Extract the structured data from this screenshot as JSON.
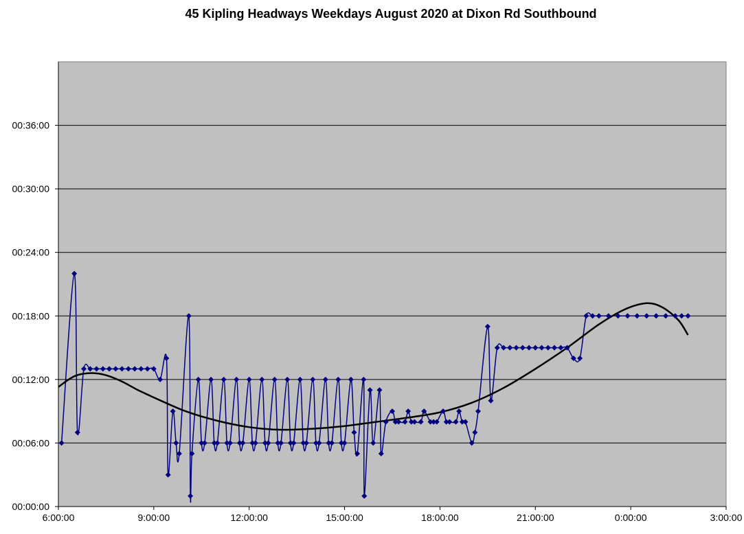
{
  "chart_data": {
    "type": "line",
    "title": "45 Kipling Headways Weekdays August 2020 at Dixon Rd Southbound",
    "xlabel": "",
    "ylabel": "",
    "x_unit": "time of day (hours, values past 24 wrap to next day)",
    "y_unit": "minutes",
    "xlim": [
      6,
      27
    ],
    "ylim": [
      0,
      42
    ],
    "x_ticks": [
      {
        "value": 6,
        "label": "6:00:00"
      },
      {
        "value": 9,
        "label": "9:00:00"
      },
      {
        "value": 12,
        "label": "12:00:00"
      },
      {
        "value": 15,
        "label": "15:00:00"
      },
      {
        "value": 18,
        "label": "18:00:00"
      },
      {
        "value": 21,
        "label": "21:00:00"
      },
      {
        "value": 24,
        "label": "0:00:00"
      },
      {
        "value": 27,
        "label": "3:00:00"
      }
    ],
    "y_ticks": [
      {
        "value": 0,
        "label": "00:00:00"
      },
      {
        "value": 6,
        "label": "00:06:00"
      },
      {
        "value": 12,
        "label": "00:12:00"
      },
      {
        "value": 18,
        "label": "00:18:00"
      },
      {
        "value": 24,
        "label": "00:24:00"
      },
      {
        "value": 30,
        "label": "00:30:00"
      },
      {
        "value": 36,
        "label": "00:36:00"
      }
    ],
    "grid": true,
    "legend": "none",
    "colors": {
      "plot_bg": "#c0c0c0",
      "series": "#000080",
      "trend": "#000000",
      "grid": "#000000"
    },
    "series": [
      {
        "style": "smoothed line with diamond markers",
        "points": [
          [
            6.1,
            6
          ],
          [
            6.5,
            22
          ],
          [
            6.6,
            7
          ],
          [
            6.8,
            13
          ],
          [
            7.0,
            13
          ],
          [
            7.2,
            13
          ],
          [
            7.4,
            13
          ],
          [
            7.6,
            13
          ],
          [
            7.8,
            13
          ],
          [
            8.0,
            13
          ],
          [
            8.2,
            13
          ],
          [
            8.4,
            13
          ],
          [
            8.6,
            13
          ],
          [
            8.8,
            13
          ],
          [
            9.0,
            13
          ],
          [
            9.2,
            12
          ],
          [
            9.4,
            14
          ],
          [
            9.45,
            3
          ],
          [
            9.6,
            9
          ],
          [
            9.7,
            6
          ],
          [
            9.8,
            5
          ],
          [
            10.1,
            18
          ],
          [
            10.15,
            1
          ],
          [
            10.2,
            5
          ],
          [
            10.4,
            12
          ],
          [
            10.5,
            6
          ],
          [
            10.6,
            6
          ],
          [
            10.8,
            12
          ],
          [
            10.9,
            6
          ],
          [
            11.0,
            6
          ],
          [
            11.2,
            12
          ],
          [
            11.3,
            6
          ],
          [
            11.4,
            6
          ],
          [
            11.6,
            12
          ],
          [
            11.7,
            6
          ],
          [
            11.8,
            6
          ],
          [
            12.0,
            12
          ],
          [
            12.1,
            6
          ],
          [
            12.2,
            6
          ],
          [
            12.4,
            12
          ],
          [
            12.5,
            6
          ],
          [
            12.6,
            6
          ],
          [
            12.8,
            12
          ],
          [
            12.9,
            6
          ],
          [
            13.0,
            6
          ],
          [
            13.2,
            12
          ],
          [
            13.3,
            6
          ],
          [
            13.4,
            6
          ],
          [
            13.6,
            12
          ],
          [
            13.7,
            6
          ],
          [
            13.8,
            6
          ],
          [
            14.0,
            12
          ],
          [
            14.1,
            6
          ],
          [
            14.2,
            6
          ],
          [
            14.4,
            12
          ],
          [
            14.5,
            6
          ],
          [
            14.6,
            6
          ],
          [
            14.8,
            12
          ],
          [
            14.9,
            6
          ],
          [
            15.0,
            6
          ],
          [
            15.2,
            12
          ],
          [
            15.3,
            7
          ],
          [
            15.4,
            5
          ],
          [
            15.6,
            12
          ],
          [
            15.62,
            1
          ],
          [
            15.8,
            11
          ],
          [
            15.9,
            6
          ],
          [
            16.1,
            11
          ],
          [
            16.15,
            5
          ],
          [
            16.3,
            8
          ],
          [
            16.5,
            9
          ],
          [
            16.6,
            8
          ],
          [
            16.7,
            8
          ],
          [
            16.9,
            8
          ],
          [
            17.0,
            9
          ],
          [
            17.1,
            8
          ],
          [
            17.2,
            8
          ],
          [
            17.4,
            8
          ],
          [
            17.5,
            9
          ],
          [
            17.7,
            8
          ],
          [
            17.8,
            8
          ],
          [
            17.9,
            8
          ],
          [
            18.1,
            9
          ],
          [
            18.2,
            8
          ],
          [
            18.3,
            8
          ],
          [
            18.5,
            8
          ],
          [
            18.6,
            9
          ],
          [
            18.7,
            8
          ],
          [
            18.8,
            8
          ],
          [
            19.0,
            6
          ],
          [
            19.1,
            7
          ],
          [
            19.2,
            9
          ],
          [
            19.5,
            17
          ],
          [
            19.6,
            10
          ],
          [
            19.8,
            15
          ],
          [
            20.0,
            15
          ],
          [
            20.2,
            15
          ],
          [
            20.4,
            15
          ],
          [
            20.6,
            15
          ],
          [
            20.8,
            15
          ],
          [
            21.0,
            15
          ],
          [
            21.2,
            15
          ],
          [
            21.4,
            15
          ],
          [
            21.6,
            15
          ],
          [
            21.8,
            15
          ],
          [
            22.0,
            15
          ],
          [
            22.2,
            14
          ],
          [
            22.4,
            14
          ],
          [
            22.6,
            18
          ],
          [
            22.8,
            18
          ],
          [
            23.0,
            18
          ],
          [
            23.3,
            18
          ],
          [
            23.6,
            18
          ],
          [
            23.9,
            18
          ],
          [
            24.2,
            18
          ],
          [
            24.5,
            18
          ],
          [
            24.8,
            18
          ],
          [
            25.1,
            18
          ],
          [
            25.4,
            18
          ],
          [
            25.6,
            18
          ],
          [
            25.8,
            18
          ]
        ]
      },
      {
        "style": "trend line",
        "points": [
          [
            6.0,
            11.3
          ],
          [
            6.5,
            12.3
          ],
          [
            7.0,
            12.6
          ],
          [
            7.5,
            12.4
          ],
          [
            8.0,
            11.8
          ],
          [
            8.5,
            11.0
          ],
          [
            9.0,
            10.3
          ],
          [
            10.0,
            9.0
          ],
          [
            11.0,
            8.1
          ],
          [
            12.0,
            7.5
          ],
          [
            13.0,
            7.25
          ],
          [
            14.0,
            7.35
          ],
          [
            15.0,
            7.6
          ],
          [
            16.0,
            8.0
          ],
          [
            17.0,
            8.4
          ],
          [
            18.0,
            8.9
          ],
          [
            19.0,
            9.8
          ],
          [
            20.0,
            11.2
          ],
          [
            21.0,
            13.0
          ],
          [
            22.0,
            15.0
          ],
          [
            23.0,
            17.2
          ],
          [
            23.8,
            18.6
          ],
          [
            24.5,
            19.2
          ],
          [
            25.0,
            18.8
          ],
          [
            25.5,
            17.6
          ],
          [
            25.8,
            16.2
          ]
        ]
      }
    ]
  }
}
